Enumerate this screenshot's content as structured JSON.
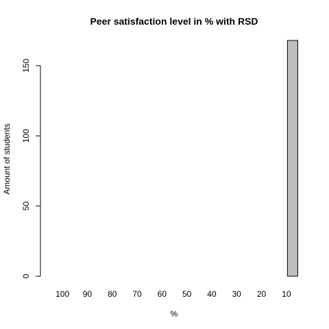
{
  "chart_data": {
    "type": "bar",
    "title": "Peer satisfaction level in % with RSD",
    "xlabel": "%",
    "ylabel": "Amount of students",
    "categories": [
      "100",
      "",
      "90",
      "",
      "80",
      "",
      "70",
      "",
      "60",
      "",
      "50",
      "",
      "40",
      "",
      "30",
      "",
      "20",
      "",
      "10",
      ""
    ],
    "values": [
      0,
      0,
      0,
      0,
      0,
      0,
      0,
      0,
      0,
      0,
      0,
      0,
      0,
      0,
      0,
      0,
      0,
      0,
      0,
      168
    ],
    "ylim": [
      0,
      168
    ],
    "yticks": [
      0,
      50,
      100,
      150
    ],
    "grid": false,
    "bar_color": "#bebebe",
    "legend": "none"
  }
}
